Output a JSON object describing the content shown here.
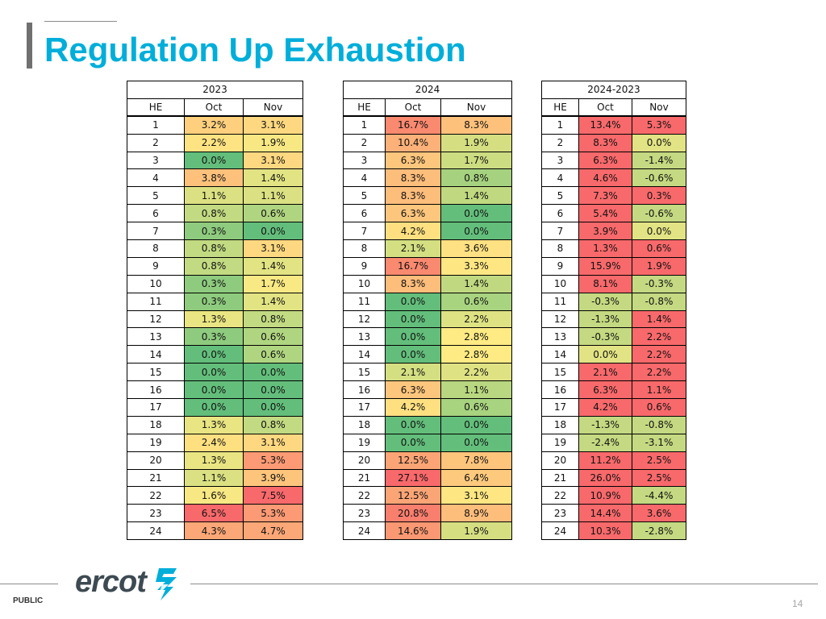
{
  "title": "Regulation Up Exhaustion",
  "tables": [
    {
      "id": "t2023",
      "caption": "2023",
      "headers": [
        "HE",
        "Oct",
        "Nov"
      ],
      "rows": [
        [
          "1",
          "3.2%",
          "3.1%"
        ],
        [
          "2",
          "2.2%",
          "1.9%"
        ],
        [
          "3",
          "0.0%",
          "3.1%"
        ],
        [
          "4",
          "3.8%",
          "1.4%"
        ],
        [
          "5",
          "1.1%",
          "1.1%"
        ],
        [
          "6",
          "0.8%",
          "0.6%"
        ],
        [
          "7",
          "0.3%",
          "0.0%"
        ],
        [
          "8",
          "0.8%",
          "3.1%"
        ],
        [
          "9",
          "0.8%",
          "1.4%"
        ],
        [
          "10",
          "0.3%",
          "1.7%"
        ],
        [
          "11",
          "0.3%",
          "1.4%"
        ],
        [
          "12",
          "1.3%",
          "0.8%"
        ],
        [
          "13",
          "0.3%",
          "0.6%"
        ],
        [
          "14",
          "0.0%",
          "0.6%"
        ],
        [
          "15",
          "0.0%",
          "0.0%"
        ],
        [
          "16",
          "0.0%",
          "0.0%"
        ],
        [
          "17",
          "0.0%",
          "0.0%"
        ],
        [
          "18",
          "1.3%",
          "0.8%"
        ],
        [
          "19",
          "2.4%",
          "3.1%"
        ],
        [
          "20",
          "1.3%",
          "5.3%"
        ],
        [
          "21",
          "1.1%",
          "3.9%"
        ],
        [
          "22",
          "1.6%",
          "7.5%"
        ],
        [
          "23",
          "6.5%",
          "5.3%"
        ],
        [
          "24",
          "4.3%",
          "4.7%"
        ]
      ],
      "colors": [
        [
          "#fed07e",
          "#fed880"
        ],
        [
          "#fee382",
          "#f8e884"
        ],
        [
          "#63be7b",
          "#fed880"
        ],
        [
          "#fdc17c",
          "#e2e383"
        ],
        [
          "#dbe182",
          "#dbe182"
        ],
        [
          "#c2da81",
          "#b0d580"
        ],
        [
          "#8ecb7e",
          "#63be7b"
        ],
        [
          "#c2da81",
          "#fed880"
        ],
        [
          "#c2da81",
          "#e2e383"
        ],
        [
          "#8ecb7e",
          "#f9e984"
        ],
        [
          "#8ecb7e",
          "#e2e383"
        ],
        [
          "#e9e582",
          "#c2da81"
        ],
        [
          "#8ecb7e",
          "#b0d580"
        ],
        [
          "#63be7b",
          "#b0d580"
        ],
        [
          "#63be7b",
          "#63be7b"
        ],
        [
          "#63be7b",
          "#63be7b"
        ],
        [
          "#63be7b",
          "#63be7b"
        ],
        [
          "#e9e582",
          "#c2da81"
        ],
        [
          "#fee081",
          "#fed880"
        ],
        [
          "#e9e582",
          "#fb9a74"
        ],
        [
          "#dbe182",
          "#fdc47c"
        ],
        [
          "#f8e884",
          "#f8696b"
        ],
        [
          "#f8696b",
          "#fb9a74"
        ],
        [
          "#fca777",
          "#fca777"
        ]
      ]
    },
    {
      "id": "t2024",
      "caption": "2024",
      "headers": [
        "HE",
        "Oct",
        "Nov"
      ],
      "rows": [
        [
          "1",
          "16.7%",
          "8.3%"
        ],
        [
          "2",
          "10.4%",
          "1.9%"
        ],
        [
          "3",
          "6.3%",
          "1.7%"
        ],
        [
          "4",
          "8.3%",
          "0.8%"
        ],
        [
          "5",
          "8.3%",
          "1.4%"
        ],
        [
          "6",
          "6.3%",
          "0.0%"
        ],
        [
          "7",
          "4.2%",
          "0.0%"
        ],
        [
          "8",
          "2.1%",
          "3.6%"
        ],
        [
          "9",
          "16.7%",
          "3.3%"
        ],
        [
          "10",
          "8.3%",
          "1.4%"
        ],
        [
          "11",
          "0.0%",
          "0.6%"
        ],
        [
          "12",
          "0.0%",
          "2.2%"
        ],
        [
          "13",
          "0.0%",
          "2.8%"
        ],
        [
          "14",
          "0.0%",
          "2.8%"
        ],
        [
          "15",
          "2.1%",
          "2.2%"
        ],
        [
          "16",
          "6.3%",
          "1.1%"
        ],
        [
          "17",
          "4.2%",
          "0.6%"
        ],
        [
          "18",
          "0.0%",
          "0.0%"
        ],
        [
          "19",
          "0.0%",
          "0.0%"
        ],
        [
          "20",
          "12.5%",
          "7.8%"
        ],
        [
          "21",
          "27.1%",
          "6.4%"
        ],
        [
          "22",
          "12.5%",
          "3.1%"
        ],
        [
          "23",
          "20.8%",
          "8.9%"
        ],
        [
          "24",
          "14.6%",
          "1.9%"
        ]
      ],
      "colors": [
        [
          "#f9896f",
          "#fdc17c"
        ],
        [
          "#fcb179",
          "#d5df82"
        ],
        [
          "#fdc67d",
          "#ccdc81"
        ],
        [
          "#fdbd7b",
          "#a6d27f"
        ],
        [
          "#fdbd7b",
          "#c0d981"
        ],
        [
          "#fdc67d",
          "#63be7b"
        ],
        [
          "#fee081",
          "#63be7b"
        ],
        [
          "#d4df82",
          "#fee182"
        ],
        [
          "#f9896f",
          "#fee783"
        ],
        [
          "#fdbd7b",
          "#c0d981"
        ],
        [
          "#63be7b",
          "#a8d37f"
        ],
        [
          "#63be7b",
          "#dfe283"
        ],
        [
          "#63be7b",
          "#feeb84"
        ],
        [
          "#63be7b",
          "#feeb84"
        ],
        [
          "#d4df82",
          "#dfe283"
        ],
        [
          "#fdc67d",
          "#b8d780"
        ],
        [
          "#fee081",
          "#a8d37f"
        ],
        [
          "#63be7b",
          "#63be7b"
        ],
        [
          "#63be7b",
          "#63be7b"
        ],
        [
          "#fba576",
          "#fdc47c"
        ],
        [
          "#f8696b",
          "#fdc97d"
        ],
        [
          "#fba576",
          "#fee683"
        ],
        [
          "#f87e6e",
          "#fdbd7b"
        ],
        [
          "#fa9873",
          "#d5df82"
        ]
      ]
    },
    {
      "id": "tdiff",
      "caption": "2024-2023",
      "headers": [
        "HE",
        "Oct",
        "Nov"
      ],
      "rows": [
        [
          "1",
          "13.4%",
          "5.3%"
        ],
        [
          "2",
          "8.3%",
          "0.0%"
        ],
        [
          "3",
          "6.3%",
          "-1.4%"
        ],
        [
          "4",
          "4.6%",
          "-0.6%"
        ],
        [
          "5",
          "7.3%",
          "0.3%"
        ],
        [
          "6",
          "5.4%",
          "-0.6%"
        ],
        [
          "7",
          "3.9%",
          "0.0%"
        ],
        [
          "8",
          "1.3%",
          "0.6%"
        ],
        [
          "9",
          "15.9%",
          "1.9%"
        ],
        [
          "10",
          "8.1%",
          "-0.3%"
        ],
        [
          "11",
          "-0.3%",
          "-0.8%"
        ],
        [
          "12",
          "-1.3%",
          "1.4%"
        ],
        [
          "13",
          "-0.3%",
          "2.2%"
        ],
        [
          "14",
          "0.0%",
          "2.2%"
        ],
        [
          "15",
          "2.1%",
          "2.2%"
        ],
        [
          "16",
          "6.3%",
          "1.1%"
        ],
        [
          "17",
          "4.2%",
          "0.6%"
        ],
        [
          "18",
          "-1.3%",
          "-0.8%"
        ],
        [
          "19",
          "-2.4%",
          "-3.1%"
        ],
        [
          "20",
          "11.2%",
          "2.5%"
        ],
        [
          "21",
          "26.0%",
          "2.5%"
        ],
        [
          "22",
          "10.9%",
          "-4.4%"
        ],
        [
          "23",
          "14.4%",
          "3.6%"
        ],
        [
          "24",
          "10.3%",
          "-2.8%"
        ]
      ],
      "colors": [
        [
          "#f8696b",
          "#f8696b"
        ],
        [
          "#f8696b",
          "#e2e384"
        ],
        [
          "#f8696b",
          "#c4d981"
        ],
        [
          "#f8696b",
          "#c4d981"
        ],
        [
          "#f8696b",
          "#f8696b"
        ],
        [
          "#f8696b",
          "#c4d981"
        ],
        [
          "#f8696b",
          "#e2e384"
        ],
        [
          "#f8696b",
          "#f8696b"
        ],
        [
          "#f8696b",
          "#f8696b"
        ],
        [
          "#f8696b",
          "#c4d981"
        ],
        [
          "#c4d981",
          "#c4d981"
        ],
        [
          "#c4d981",
          "#f8696b"
        ],
        [
          "#c4d981",
          "#f8696b"
        ],
        [
          "#e2e384",
          "#f8696b"
        ],
        [
          "#f8696b",
          "#f8696b"
        ],
        [
          "#f8696b",
          "#f8696b"
        ],
        [
          "#f8696b",
          "#f8696b"
        ],
        [
          "#c4d981",
          "#c4d981"
        ],
        [
          "#c4d981",
          "#c4d981"
        ],
        [
          "#f8696b",
          "#f8696b"
        ],
        [
          "#f8696b",
          "#f8696b"
        ],
        [
          "#f8696b",
          "#c4d981"
        ],
        [
          "#f8696b",
          "#f8696b"
        ],
        [
          "#f8696b",
          "#c4d981"
        ]
      ]
    }
  ],
  "footer": {
    "logo_text": "ercot",
    "classification": "PUBLIC",
    "page_number": "14"
  }
}
